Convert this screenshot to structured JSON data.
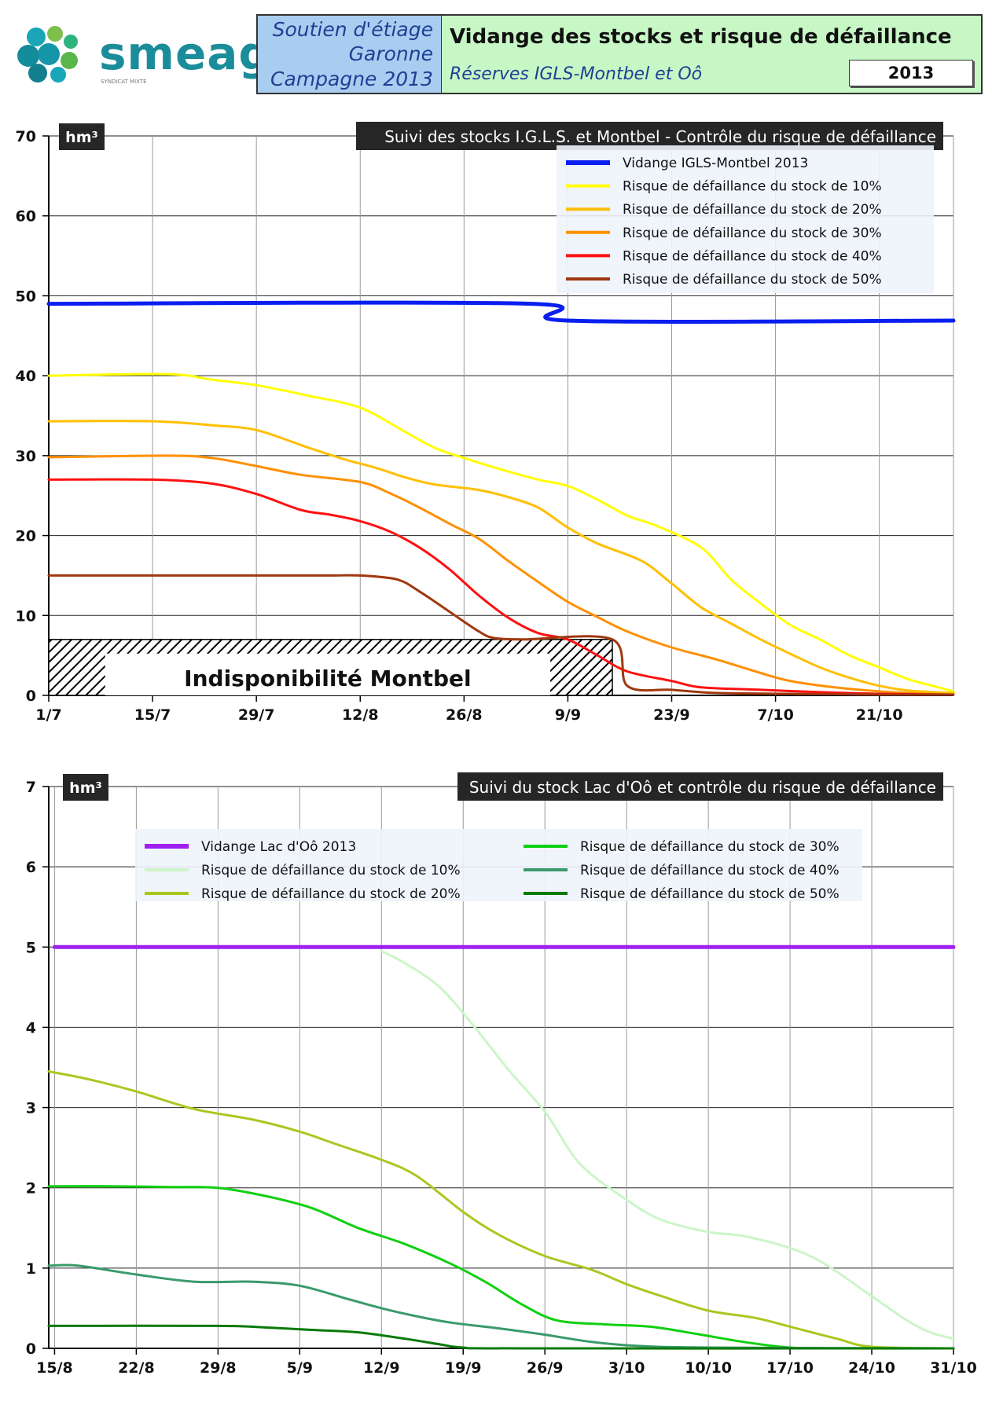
{
  "header": {
    "logo_text": "smeag",
    "logo_subtitle": "SYNDICAT MIXTE",
    "left_lines": [
      "Soutien d'étiage",
      "Garonne",
      "Campagne 2013"
    ],
    "title": "Vidange des stocks et risque de défaillance",
    "subtitle": "Réserves IGLS-Montbel et Oô",
    "year": "2013"
  },
  "colors": {
    "blue": "#0a1ef0",
    "yellow": "#ffff00",
    "gold": "#ffbf00",
    "orange": "#ff9000",
    "red": "#ff1010",
    "brown": "#a0380f",
    "purple": "#a020f0",
    "pale_green": "#ccf5c8",
    "olive_green": "#a8c820",
    "green": "#10d010",
    "teal_green": "#3a9a6a",
    "dark_green": "#0a7a0a",
    "title_bg": "#262626"
  },
  "chart_data": [
    {
      "type": "line",
      "title": "Suivi des stocks I.G.L.S. et Montbel - Contrôle du risque de défaillance",
      "unit": "hm³",
      "ylim": [
        0,
        70
      ],
      "yticks": [
        0,
        10,
        20,
        30,
        40,
        50,
        60,
        70
      ],
      "x_tick_labels": [
        "1/7",
        "15/7",
        "29/7",
        "12/8",
        "26/8",
        "9/9",
        "23/9",
        "7/10",
        "21/10"
      ],
      "x_tick_days": [
        0,
        14,
        28,
        42,
        56,
        70,
        84,
        98,
        112
      ],
      "x_range_days": [
        0,
        122
      ],
      "grid": true,
      "legend_position": "top-right",
      "annotation": {
        "text": "Indisponibilité Montbel",
        "x_start_day": 0,
        "x_end_day": 76,
        "y_max": 7
      },
      "series": [
        {
          "name": "Vidange IGLS-Montbel 2013",
          "color": "blue",
          "width": 5,
          "points": [
            [
              0,
              49
            ],
            [
              65,
              49
            ],
            [
              70,
              46.9
            ],
            [
              122,
              46.9
            ]
          ]
        },
        {
          "name": "Risque de défaillance du stock de 10%",
          "color": "yellow",
          "width": 3,
          "points": [
            [
              0,
              40
            ],
            [
              16,
              40.2
            ],
            [
              22,
              39.5
            ],
            [
              28,
              38.8
            ],
            [
              35,
              37.5
            ],
            [
              42,
              36
            ],
            [
              48,
              33
            ],
            [
              52,
              31
            ],
            [
              56,
              29.7
            ],
            [
              62,
              28
            ],
            [
              66,
              27
            ],
            [
              70,
              26.2
            ],
            [
              74,
              24.5
            ],
            [
              78,
              22.5
            ],
            [
              82,
              21.2
            ],
            [
              88,
              18.5
            ],
            [
              92,
              14.5
            ],
            [
              96,
              11.5
            ],
            [
              100,
              8.8
            ],
            [
              104,
              7
            ],
            [
              108,
              5
            ],
            [
              112,
              3.5
            ],
            [
              116,
              2
            ],
            [
              120,
              1
            ],
            [
              122,
              0.5
            ]
          ]
        },
        {
          "name": "Risque de défaillance du stock de 20%",
          "color": "gold",
          "width": 3,
          "points": [
            [
              0,
              34.3
            ],
            [
              14,
              34.3
            ],
            [
              22,
              33.8
            ],
            [
              28,
              33.2
            ],
            [
              35,
              31
            ],
            [
              40,
              29.5
            ],
            [
              44,
              28.5
            ],
            [
              48,
              27.3
            ],
            [
              52,
              26.4
            ],
            [
              58,
              25.7
            ],
            [
              62,
              24.8
            ],
            [
              66,
              23.5
            ],
            [
              70,
              21
            ],
            [
              74,
              19
            ],
            [
              80,
              16.8
            ],
            [
              84,
              14
            ],
            [
              88,
              11
            ],
            [
              92,
              9
            ],
            [
              96,
              7
            ],
            [
              100,
              5.2
            ],
            [
              104,
              3.5
            ],
            [
              108,
              2.2
            ],
            [
              112,
              1.2
            ],
            [
              116,
              0.6
            ],
            [
              122,
              0.3
            ]
          ]
        },
        {
          "name": "Risque de défaillance du stock de 30%",
          "color": "orange",
          "width": 3,
          "points": [
            [
              0,
              29.8
            ],
            [
              16,
              30
            ],
            [
              22,
              29.7
            ],
            [
              28,
              28.7
            ],
            [
              34,
              27.6
            ],
            [
              42,
              26.7
            ],
            [
              46,
              25.3
            ],
            [
              50,
              23.5
            ],
            [
              54,
              21.5
            ],
            [
              58,
              19.6
            ],
            [
              62,
              16.8
            ],
            [
              66,
              14.2
            ],
            [
              70,
              11.7
            ],
            [
              74,
              9.8
            ],
            [
              78,
              8
            ],
            [
              84,
              6
            ],
            [
              90,
              4.5
            ],
            [
              96,
              2.8
            ],
            [
              100,
              1.8
            ],
            [
              106,
              1
            ],
            [
              112,
              0.5
            ],
            [
              118,
              0.2
            ],
            [
              122,
              0.1
            ]
          ]
        },
        {
          "name": "Risque de défaillance du stock de 40%",
          "color": "red",
          "width": 3,
          "points": [
            [
              0,
              27
            ],
            [
              14,
              27
            ],
            [
              22,
              26.5
            ],
            [
              28,
              25.2
            ],
            [
              34,
              23.2
            ],
            [
              38,
              22.6
            ],
            [
              42,
              21.8
            ],
            [
              46,
              20.5
            ],
            [
              50,
              18.5
            ],
            [
              54,
              15.8
            ],
            [
              58,
              12.5
            ],
            [
              62,
              9.7
            ],
            [
              66,
              7.8
            ],
            [
              70,
              7
            ],
            [
              74,
              5
            ],
            [
              78,
              3
            ],
            [
              84,
              1.8
            ],
            [
              88,
              1
            ],
            [
              96,
              0.7
            ],
            [
              104,
              0.4
            ],
            [
              112,
              0.2
            ],
            [
              122,
              0.1
            ]
          ]
        },
        {
          "name": "Risque de défaillance du stock de 50%",
          "color": "brown",
          "width": 3,
          "points": [
            [
              0,
              15
            ],
            [
              20,
              15
            ],
            [
              30,
              15
            ],
            [
              38,
              15
            ],
            [
              42,
              15
            ],
            [
              47,
              14.5
            ],
            [
              50,
              13
            ],
            [
              54,
              10.5
            ],
            [
              58,
              8
            ],
            [
              60,
              7.2
            ],
            [
              64,
              7
            ],
            [
              76,
              7
            ],
            [
              78,
              1.2
            ],
            [
              84,
              0.7
            ],
            [
              90,
              0.3
            ],
            [
              100,
              0.2
            ],
            [
              112,
              0.1
            ],
            [
              122,
              0.1
            ]
          ]
        }
      ]
    },
    {
      "type": "line",
      "title": "Suivi du stock Lac d'Oô et contrôle du risque de défaillance",
      "unit": "hm³",
      "ylim": [
        0,
        7
      ],
      "yticks": [
        0,
        1,
        2,
        3,
        4,
        5,
        6,
        7
      ],
      "x_tick_labels": [
        "15/8",
        "22/8",
        "29/8",
        "5/9",
        "12/9",
        "19/9",
        "26/9",
        "3/10",
        "10/10",
        "17/10",
        "24/10",
        "31/10"
      ],
      "x_tick_days": [
        0,
        7,
        14,
        21,
        28,
        35,
        42,
        49,
        56,
        63,
        70,
        77
      ],
      "x_range_days": [
        -0.5,
        77
      ],
      "grid": true,
      "legend_position": "top",
      "series": [
        {
          "name": "Vidange Lac d'Oô 2013",
          "color": "purple",
          "width": 5,
          "points": [
            [
              0,
              5
            ],
            [
              77,
              5
            ]
          ]
        },
        {
          "name": "Risque de défaillance du stock de 10%",
          "color": "pale_green",
          "width": 3,
          "points": [
            [
              28,
              4.95
            ],
            [
              30,
              4.8
            ],
            [
              33,
              4.5
            ],
            [
              36,
              4
            ],
            [
              39,
              3.45
            ],
            [
              42,
              2.95
            ],
            [
              45,
              2.3
            ],
            [
              49,
              1.85
            ],
            [
              52,
              1.6
            ],
            [
              56,
              1.45
            ],
            [
              59,
              1.4
            ],
            [
              63,
              1.25
            ],
            [
              66,
              1.05
            ],
            [
              70,
              0.65
            ],
            [
              73,
              0.35
            ],
            [
              75,
              0.2
            ],
            [
              77,
              0.12
            ]
          ]
        },
        {
          "name": "Risque de défaillance du stock de 20%",
          "color": "olive_green",
          "width": 3,
          "points": [
            [
              -0.5,
              3.45
            ],
            [
              3,
              3.35
            ],
            [
              7,
              3.2
            ],
            [
              12,
              2.98
            ],
            [
              17,
              2.85
            ],
            [
              21,
              2.7
            ],
            [
              24,
              2.55
            ],
            [
              28,
              2.35
            ],
            [
              31,
              2.15
            ],
            [
              35,
              1.7
            ],
            [
              38,
              1.42
            ],
            [
              42,
              1.15
            ],
            [
              46,
              0.98
            ],
            [
              49,
              0.8
            ],
            [
              52,
              0.65
            ],
            [
              56,
              0.47
            ],
            [
              60,
              0.38
            ],
            [
              63,
              0.27
            ],
            [
              67,
              0.12
            ],
            [
              70,
              0.02
            ],
            [
              77,
              0
            ]
          ]
        },
        {
          "name": "Risque de défaillance du stock de 30%",
          "color": "green",
          "width": 3,
          "points": [
            [
              -0.5,
              2.02
            ],
            [
              5,
              2.02
            ],
            [
              10,
              2.01
            ],
            [
              14,
              2
            ],
            [
              18,
              1.9
            ],
            [
              22,
              1.75
            ],
            [
              26,
              1.5
            ],
            [
              30,
              1.3
            ],
            [
              34,
              1.05
            ],
            [
              37,
              0.82
            ],
            [
              40,
              0.55
            ],
            [
              43,
              0.35
            ],
            [
              47,
              0.3
            ],
            [
              51,
              0.27
            ],
            [
              55,
              0.18
            ],
            [
              59,
              0.08
            ],
            [
              63,
              0.01
            ],
            [
              67,
              0
            ],
            [
              77,
              0
            ]
          ]
        },
        {
          "name": "Risque de défaillance du stock de 40%",
          "color": "teal_green",
          "width": 3,
          "points": [
            [
              -0.5,
              1.03
            ],
            [
              2,
              1.03
            ],
            [
              7,
              0.92
            ],
            [
              12,
              0.83
            ],
            [
              17,
              0.83
            ],
            [
              21,
              0.78
            ],
            [
              25,
              0.62
            ],
            [
              28,
              0.5
            ],
            [
              31,
              0.4
            ],
            [
              34,
              0.32
            ],
            [
              38,
              0.25
            ],
            [
              42,
              0.17
            ],
            [
              46,
              0.08
            ],
            [
              50,
              0.03
            ],
            [
              56,
              0.01
            ],
            [
              77,
              0
            ]
          ]
        },
        {
          "name": "Risque de défaillance du stock de 50%",
          "color": "dark_green",
          "width": 3,
          "points": [
            [
              -0.5,
              0.28
            ],
            [
              14,
              0.28
            ],
            [
              18,
              0.26
            ],
            [
              22,
              0.23
            ],
            [
              26,
              0.2
            ],
            [
              30,
              0.12
            ],
            [
              33,
              0.05
            ],
            [
              35,
              0.01
            ],
            [
              40,
              0
            ],
            [
              77,
              0
            ]
          ]
        }
      ]
    }
  ]
}
